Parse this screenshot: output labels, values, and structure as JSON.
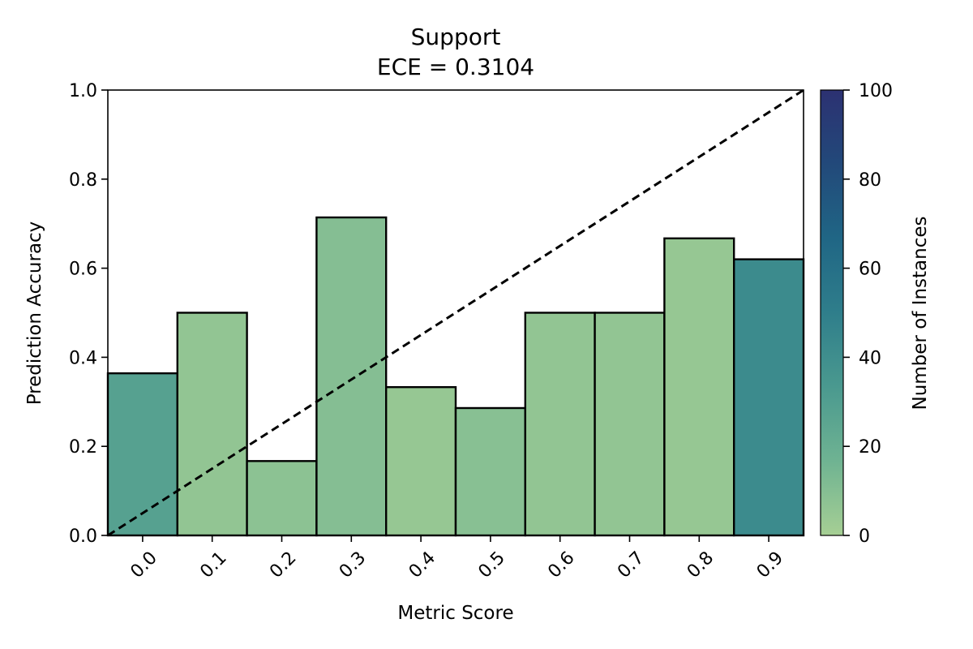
{
  "chart_data": {
    "type": "bar",
    "title": "Support",
    "subtitle": "ECE = 0.3104",
    "xlabel": "Metric Score",
    "ylabel": "Prediction Accuracy",
    "categories": [
      "0.0",
      "0.1",
      "0.2",
      "0.3",
      "0.4",
      "0.5",
      "0.6",
      "0.7",
      "0.8",
      "0.9"
    ],
    "x": [
      0.0,
      0.1,
      0.2,
      0.3,
      0.4,
      0.5,
      0.6,
      0.7,
      0.8,
      0.9
    ],
    "values": [
      0.364,
      0.5,
      0.167,
      0.714,
      0.333,
      0.286,
      0.5,
      0.5,
      0.667,
      0.62
    ],
    "counts": [
      28,
      6,
      8,
      10,
      5,
      9,
      6,
      6,
      5,
      42
    ],
    "xlim": [
      -0.05,
      0.95
    ],
    "ylim": [
      0,
      1.0
    ],
    "yticks": [
      "0.0",
      "0.2",
      "0.4",
      "0.6",
      "0.8",
      "1.0"
    ],
    "reference_line": {
      "style": "dashed",
      "color": "#000000",
      "from": [
        -0.05,
        0.0
      ],
      "to": [
        0.95,
        1.0
      ]
    },
    "grid": false,
    "colorbar": {
      "label": "Number of Instances",
      "range": [
        0,
        100
      ],
      "ticks": [
        "0",
        "20",
        "40",
        "60",
        "80",
        "100"
      ],
      "colors": [
        "#a6cf94",
        "#6fb392",
        "#4a998f",
        "#2f7e8b",
        "#206685",
        "#22497a",
        "#2c3172"
      ]
    }
  }
}
